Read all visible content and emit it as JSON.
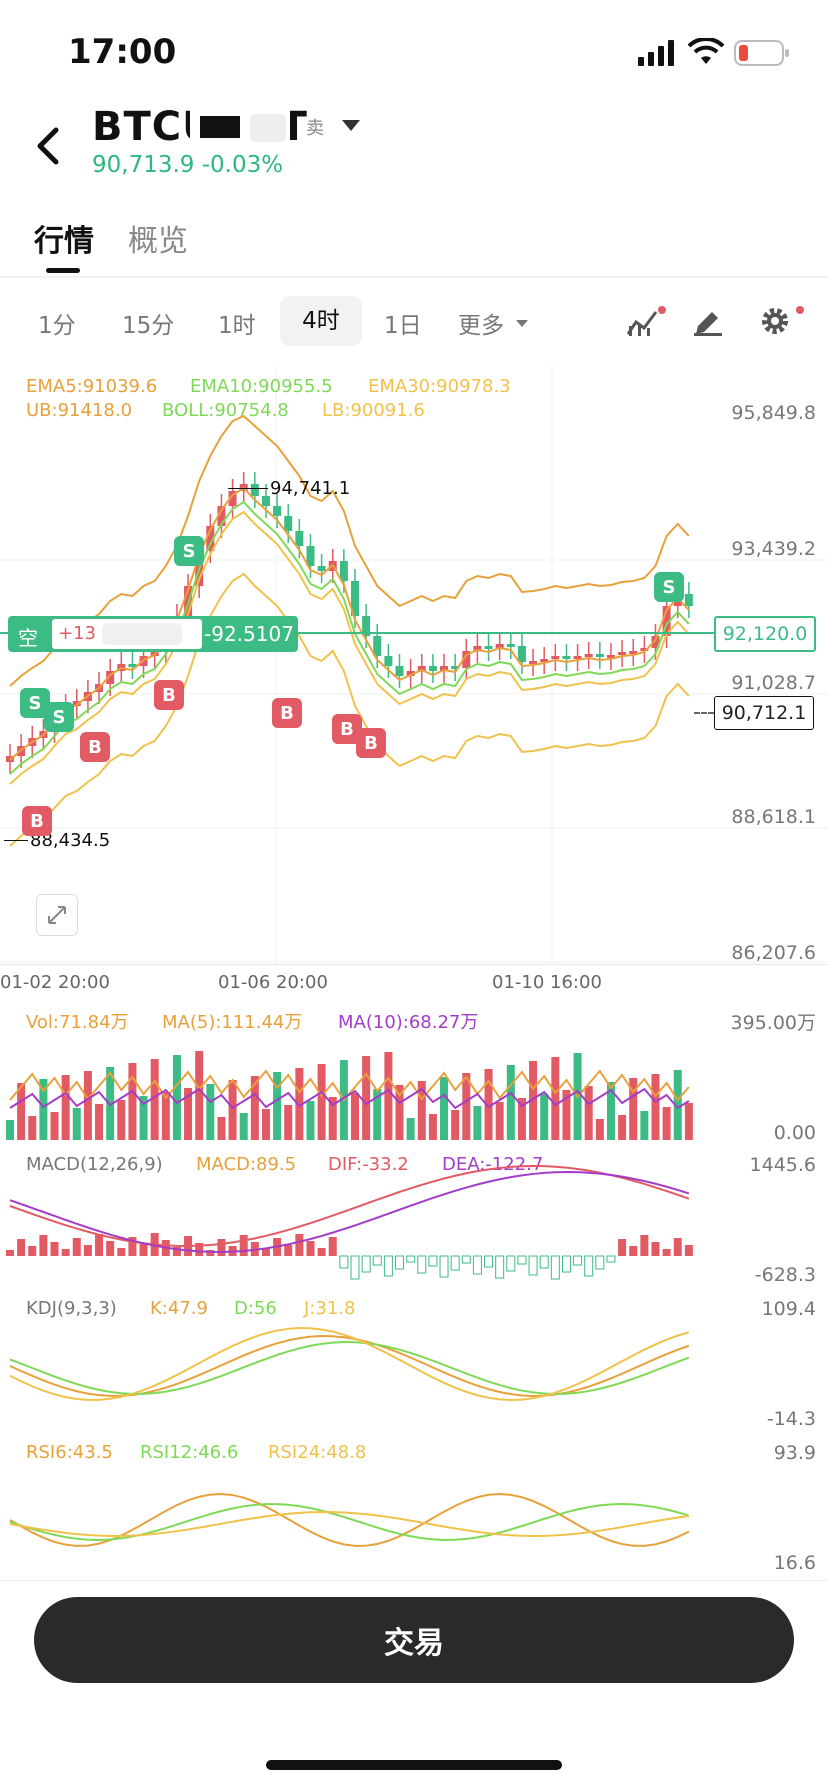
{
  "status": {
    "time": "17:00"
  },
  "header": {
    "title": "BTCUSDT",
    "market_badge": "卖",
    "last_price_line": "90,713.9 -0.03%"
  },
  "tabs": [
    {
      "label": "行情"
    },
    {
      "label": "概览"
    }
  ],
  "timeframes": [
    {
      "label": "1分"
    },
    {
      "label": "15分"
    },
    {
      "label": "1时"
    },
    {
      "label": "4时"
    },
    {
      "label": "1日"
    },
    {
      "label": "更多"
    }
  ],
  "overlay": {
    "ema5": "EMA5:91039.6",
    "ema10": "EMA10:90955.5",
    "ema30": "EMA30:90978.3",
    "ub": "UB:91418.0",
    "boll": "BOLL:90754.8",
    "lb": "LB:90091.6"
  },
  "price_axis": [
    "95,849.8",
    "93,439.2",
    "91,028.7",
    "88,618.1",
    "86,207.6"
  ],
  "markers": {
    "high": "94,741.1",
    "low": "88,434.5",
    "position_side": "空",
    "position_left": "+13",
    "position_pnl": "-92.5107",
    "position_price": "92,120.0",
    "current_price": "90,712.1"
  },
  "time_axis": [
    "01-02 20:00",
    "01-06 20:00",
    "01-10 16:00"
  ],
  "volume": {
    "vol": "Vol:71.84万",
    "ma5": "MA(5):111.44万",
    "ma10": "MA(10):68.27万",
    "axis_top": "395.00万",
    "axis_bottom": "0.00"
  },
  "macd": {
    "title": "MACD(12,26,9)",
    "macd": "MACD:89.5",
    "dif": "DIF:-33.2",
    "dea": "DEA:-122.7",
    "axis_top": "1445.6",
    "axis_bottom": "-628.3"
  },
  "kdj": {
    "title": "KDJ(9,3,3)",
    "k": "K:47.9",
    "d": "D:56",
    "j": "J:31.8",
    "axis_top": "109.4",
    "axis_bottom": "-14.3"
  },
  "rsi": {
    "rsi6": "RSI6:43.5",
    "rsi12": "RSI12:46.6",
    "rsi24": "RSI24:48.8",
    "axis_top": "93.9",
    "axis_bottom": "16.6"
  },
  "trade_button": "交易",
  "colors": {
    "up": "#e25a63",
    "down": "#3dbb84",
    "ema5": "#e8a13a",
    "ema10": "#7ed957",
    "ema30": "#f0c24b",
    "dea": "#a33cc8",
    "price_green": "#2db87d"
  },
  "chart_data": {
    "type": "candlestick",
    "interval": "4时",
    "ylim": [
      86207.6,
      95849.8
    ],
    "series": [
      {
        "name": "EMA5",
        "last": 91039.6
      },
      {
        "name": "EMA10",
        "last": 90955.5
      },
      {
        "name": "EMA30",
        "last": 90978.3
      },
      {
        "name": "UB",
        "last": 91418.0
      },
      {
        "name": "BOLL",
        "last": 90754.8
      },
      {
        "name": "LB",
        "last": 90091.6
      }
    ],
    "high": 94741.1,
    "low": 88434.5,
    "last": 90712.1
  }
}
